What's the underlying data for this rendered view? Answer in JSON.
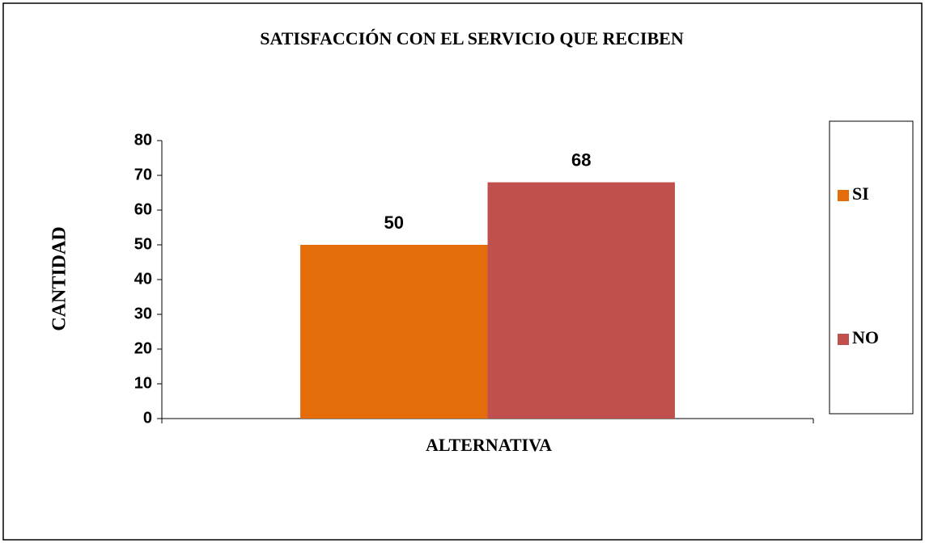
{
  "chart_data": {
    "type": "bar",
    "title": "SATISFACCIÓN CON EL SERVICIO QUE RECIBEN",
    "x_label": "ALTERNATIVA",
    "y_label": "CANTIDAD",
    "categories": [
      null
    ],
    "series": [
      {
        "name": "SI",
        "color": "#e46c0a",
        "values": [
          50
        ]
      },
      {
        "name": "NO",
        "color": "#c0504d",
        "values": [
          68
        ]
      }
    ],
    "ylim": [
      0,
      80
    ],
    "yticks": [
      0,
      10,
      20,
      30,
      40,
      50,
      60,
      70,
      80
    ],
    "grid": false,
    "data_labels": true,
    "legend": "right"
  }
}
